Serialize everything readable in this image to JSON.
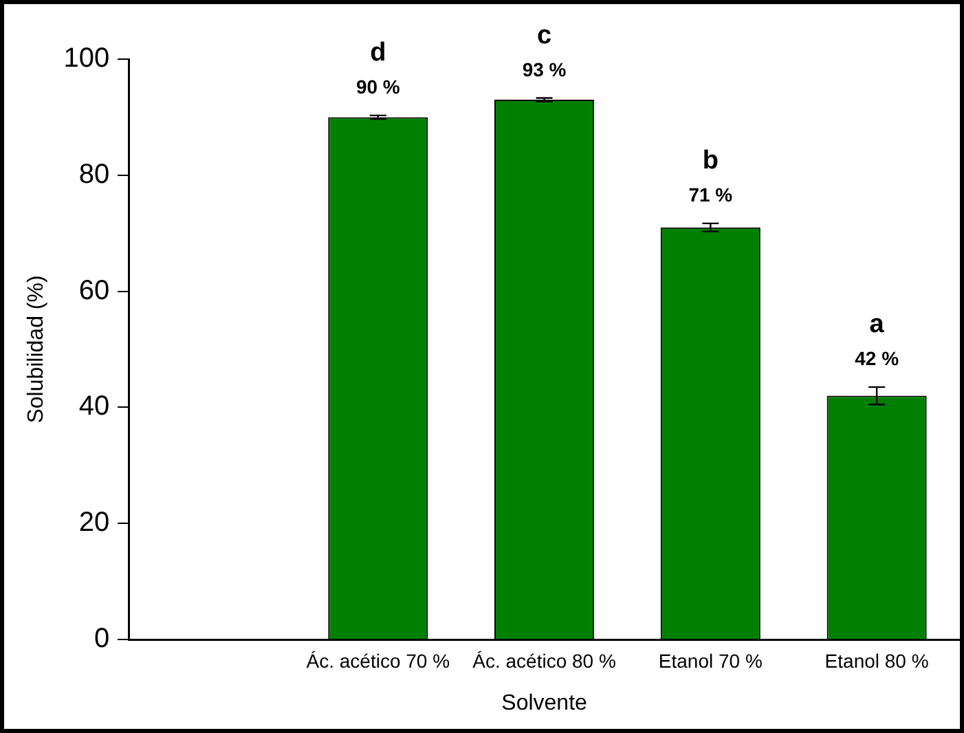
{
  "chart_data": {
    "type": "bar",
    "xlabel": "Solvente",
    "ylabel": "Solubilidad (%)",
    "categories": [
      null,
      "Ác. acético 70 %",
      "Ác. acético 80 %",
      "Etanol 70 %",
      "Etanol 80 %"
    ],
    "values": [
      null,
      90,
      93,
      71,
      42
    ],
    "errors": [
      null,
      0.3,
      0.3,
      0.7,
      1.5
    ],
    "value_labels": [
      null,
      "90 %",
      "93 %",
      "71 %",
      "42 %"
    ],
    "color": "#008000",
    "ylim": [
      0,
      100
    ],
    "yticks": [
      0,
      20,
      40,
      60,
      80,
      100
    ],
    "grid": false,
    "legend": false,
    "annotations": [
      "d",
      "c",
      "b",
      "a"
    ]
  }
}
